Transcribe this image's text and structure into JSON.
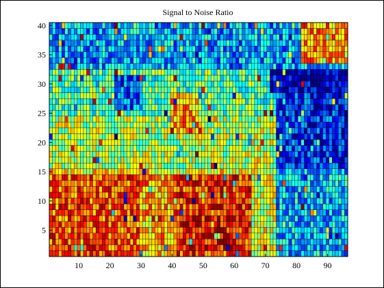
{
  "chart_data": {
    "type": "heatmap",
    "title": "Signal to Noise Ratio",
    "xlabel": "",
    "ylabel": "",
    "x_cells": 96,
    "y_cells": 40,
    "xlim": [
      0.5,
      96.5
    ],
    "ylim": [
      0.5,
      40.5
    ],
    "x_ticks": [
      10,
      20,
      30,
      40,
      50,
      60,
      70,
      80,
      90
    ],
    "y_ticks": [
      5,
      10,
      15,
      20,
      25,
      30,
      35,
      40
    ],
    "colormap": "jet",
    "clim": [
      0,
      1
    ],
    "cell_edge_color": "#000000",
    "regions": [
      {
        "x": [
          1,
          96
        ],
        "y": [
          1,
          15
        ],
        "level": 0.64
      },
      {
        "x": [
          1,
          96
        ],
        "y": [
          16,
          24
        ],
        "level": 0.55
      },
      {
        "x": [
          1,
          96
        ],
        "y": [
          25,
          32
        ],
        "level": 0.46
      },
      {
        "x": [
          1,
          96
        ],
        "y": [
          33,
          40
        ],
        "level": 0.3
      },
      {
        "x": [
          1,
          30
        ],
        "y": [
          1,
          14
        ],
        "level": 0.8
      },
      {
        "x": [
          40,
          66
        ],
        "y": [
          1,
          14
        ],
        "level": 0.83
      },
      {
        "x": [
          44,
          60
        ],
        "y": [
          2,
          7
        ],
        "level": 0.88
      },
      {
        "x": [
          30,
          40
        ],
        "y": [
          1,
          14
        ],
        "level": 0.7
      },
      {
        "x": [
          66,
          74
        ],
        "y": [
          1,
          24
        ],
        "level": 0.58
      },
      {
        "x": [
          74,
          96
        ],
        "y": [
          1,
          15
        ],
        "level": 0.32
      },
      {
        "x": [
          74,
          96
        ],
        "y": [
          16,
          29
        ],
        "level": 0.16
      },
      {
        "x": [
          72,
          96
        ],
        "y": [
          29,
          32
        ],
        "level": 0.08
      },
      {
        "x": [
          82,
          96
        ],
        "y": [
          34,
          40
        ],
        "level": 0.72
      },
      {
        "x": [
          22,
          30
        ],
        "y": [
          26,
          31
        ],
        "level": 0.22
      },
      {
        "x": [
          40,
          48
        ],
        "y": [
          22,
          28
        ],
        "level": 0.72
      }
    ],
    "noise_amplitude": 0.16
  }
}
